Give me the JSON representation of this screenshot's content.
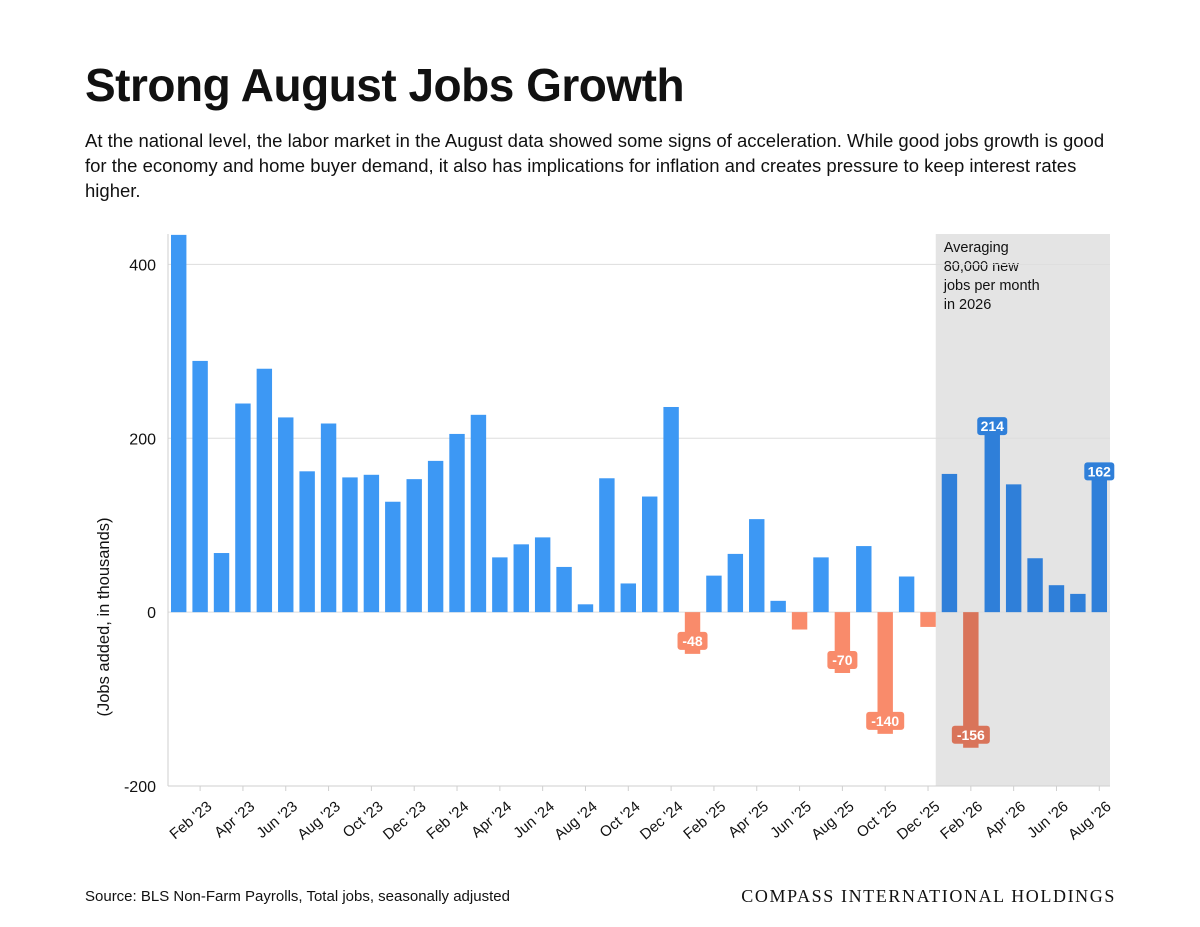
{
  "header": {
    "title": "Strong August Jobs Growth",
    "subtitle": "At the national level, the labor market in the August data showed some signs of acceleration. While good jobs growth is good for the economy and home buyer demand, it also has implications for inflation and creates pressure to keep interest rates higher."
  },
  "footer": {
    "source": "Source: BLS Non-Farm Payrolls, Total jobs, seasonally adjusted",
    "brand": "COMPASS INTERNATIONAL HOLDINGS"
  },
  "colors": {
    "positive": "#3d98f4",
    "negative": "#f98b6b",
    "positive_2026": "#2f7fd9",
    "negative_2026": "#d9745a",
    "highlight_band": "#e4e4e4",
    "grid": "#dddddd"
  },
  "chart_data": {
    "type": "bar",
    "title": "",
    "xlabel": "",
    "ylabel": "(Jobs added, in thousands)",
    "ylim": [
      -200,
      435
    ],
    "yticks": [
      400,
      200,
      0,
      -200
    ],
    "grid": true,
    "categories": [
      "Jan '23",
      "Feb '23",
      "Mar '23",
      "Apr '23",
      "May '23",
      "Jun '23",
      "Jul '23",
      "Aug '23",
      "Sep '23",
      "Oct '23",
      "Nov '23",
      "Dec '23",
      "Jan '24",
      "Feb '24",
      "Mar '24",
      "Apr '24",
      "May '24",
      "Jun '24",
      "Jul '24",
      "Aug '24",
      "Sep '24",
      "Oct '24",
      "Nov '24",
      "Dec '24",
      "Jan '25",
      "Feb '25",
      "Mar '25",
      "Apr '25",
      "May '25",
      "Jun '25",
      "Jul '25",
      "Aug '25",
      "Sep '25",
      "Oct '25",
      "Nov '25",
      "Dec '25",
      "Jan '26",
      "Feb '26",
      "Mar '26",
      "Apr '26",
      "May '26",
      "Jun '26",
      "Jul '26",
      "Aug '26"
    ],
    "tick_labels": [
      "Feb '23",
      "Apr '23",
      "Jun '23",
      "Aug '23",
      "Oct '23",
      "Dec '23",
      "Feb '24",
      "Apr '24",
      "Jun '24",
      "Aug '24",
      "Oct '24",
      "Dec '24",
      "Feb '25",
      "Apr '25",
      "Jun '25",
      "Aug '25",
      "Oct '25",
      "Dec '25",
      "Feb '26",
      "Apr '26",
      "Jun '26",
      "Aug '26"
    ],
    "values": [
      434,
      289,
      68,
      240,
      280,
      224,
      162,
      217,
      155,
      158,
      127,
      153,
      174,
      205,
      227,
      63,
      78,
      86,
      52,
      9,
      154,
      33,
      133,
      236,
      -48,
      42,
      67,
      107,
      13,
      -20,
      63,
      -70,
      76,
      -140,
      41,
      -17,
      159,
      -156,
      214,
      147,
      62,
      31,
      21,
      162
    ],
    "data_labels": [
      {
        "category": "Jan '25",
        "text": "-48"
      },
      {
        "category": "Aug '25",
        "text": "-70"
      },
      {
        "category": "Oct '25",
        "text": "-140"
      },
      {
        "category": "Feb '26",
        "text": "-156"
      },
      {
        "category": "Mar '26",
        "text": "214"
      },
      {
        "category": "Aug '26",
        "text": "162"
      }
    ],
    "highlight": {
      "from": "Jan '26",
      "to": "Aug '26",
      "annotation": [
        "Averaging",
        "80,000 new",
        "jobs per month",
        "in 2026"
      ]
    }
  }
}
